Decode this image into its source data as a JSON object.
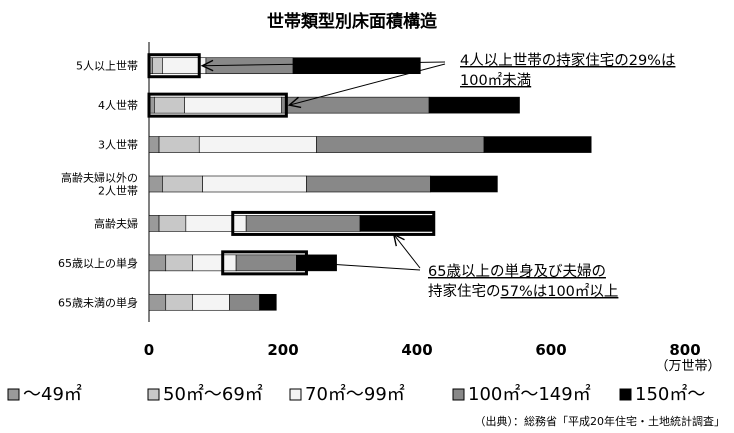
{
  "chart_data": {
    "type": "bar",
    "orientation": "horizontal",
    "stacked": true,
    "title": "世帯類型別床面積構造",
    "categories": [
      "5人以上世帯",
      "4人世帯",
      "3人世帯",
      "高齢夫婦以外の2人世帯",
      "高齢夫婦",
      "65歳以上の単身",
      "65歳未満の単身"
    ],
    "category_lines": [
      [
        "5人以上世帯"
      ],
      [
        "4人世帯"
      ],
      [
        "3人世帯"
      ],
      [
        "高齢夫婦以外の",
        "2人世帯"
      ],
      [
        "高齢夫婦"
      ],
      [
        "65歳以上の単身"
      ],
      [
        "65歳未満の単身"
      ]
    ],
    "series": [
      {
        "name": "～49㎡",
        "color": "#9a9a9a",
        "values": [
          5,
          8,
          15,
          20,
          15,
          25,
          25
        ]
      },
      {
        "name": "50㎡～69㎡",
        "color": "#c8c8c8",
        "values": [
          15,
          45,
          60,
          60,
          40,
          40,
          40
        ]
      },
      {
        "name": "70㎡～99㎡",
        "color": "#f4f4f4",
        "values": [
          65,
          145,
          175,
          155,
          90,
          65,
          55
        ]
      },
      {
        "name": "100㎡～149㎡",
        "color": "#888888",
        "values": [
          130,
          220,
          250,
          185,
          170,
          90,
          45
        ]
      },
      {
        "name": "150㎡～",
        "color": "#000000",
        "values": [
          190,
          135,
          160,
          100,
          110,
          60,
          25
        ]
      }
    ],
    "xticks": [
      0,
      200,
      400,
      600,
      800
    ],
    "xlim": [
      0,
      800
    ],
    "xunit": "（万世帯）",
    "legend_position": "bottom",
    "highlight_boxes": [
      {
        "category": 0,
        "from": 0,
        "to": 75
      },
      {
        "category": 1,
        "from": 0,
        "to": 205
      },
      {
        "category": 4,
        "from": 125,
        "to": 425
      },
      {
        "category": 5,
        "from": 110,
        "to": 235
      }
    ],
    "annotations": [
      {
        "lines": [
          [
            "4人以上世帯の持家住宅の",
            "29%は"
          ],
          [
            "100㎡未満",
            ""
          ]
        ],
        "underline": true
      },
      {
        "lines": [
          [
            "65歳以上の単身及び夫婦の",
            ""
          ],
          [
            "持家住宅の",
            "57%は100㎡以上"
          ]
        ],
        "underline": true
      }
    ],
    "source": "（出典）：総務省「平成20年住宅・土地統計調査」"
  }
}
